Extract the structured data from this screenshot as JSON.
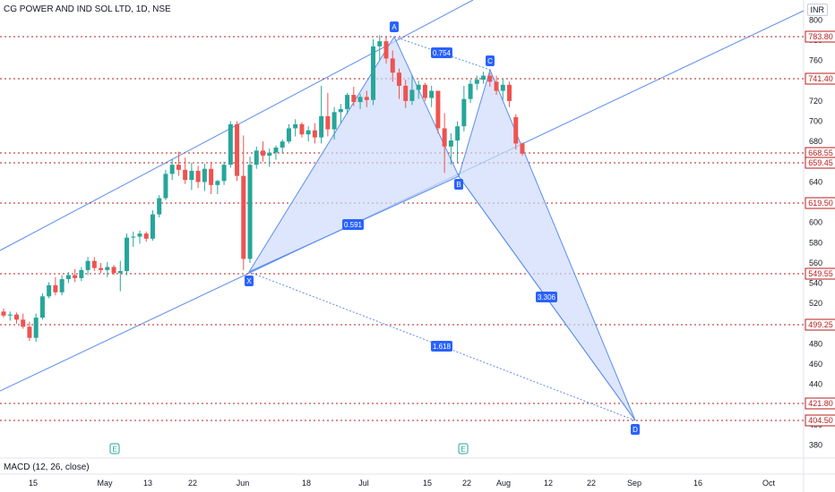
{
  "title": "CG POWER AND IND SOL LTD, 1D, NSE",
  "currency": "INR",
  "macd_label": "MACD (12, 26, close)",
  "colors": {
    "up": "#26a69a",
    "down": "#ef5350",
    "line": "#5b8def",
    "fill": "#cfdcfb",
    "level": "#b71c1c",
    "badge": "#2962ff"
  },
  "chart_data": {
    "type": "candlestick",
    "x_ticks": [
      "15",
      "May",
      "13",
      "22",
      "Jun",
      "18",
      "Jul",
      "15",
      "22",
      "Aug",
      "12",
      "22",
      "Sep",
      "16",
      "Oct"
    ],
    "y_ticks": [
      380,
      400,
      420,
      440,
      460,
      480,
      500,
      520,
      540,
      560,
      580,
      600,
      620,
      640,
      660,
      680,
      700,
      720,
      740,
      760,
      780,
      800
    ],
    "ylim": [
      370,
      810
    ],
    "price_labels": [
      "783.80",
      "741.40",
      "668.55",
      "659.45",
      "619.50",
      "549.55",
      "499.25",
      "421.80",
      "404.50"
    ],
    "pattern_points": [
      "X",
      "A",
      "B",
      "C",
      "D"
    ],
    "pattern_ratios": [
      "0.754",
      "0.591",
      "3.306",
      "1.618"
    ],
    "event_markers": [
      "E",
      "E"
    ],
    "candles": [
      [
        512,
        515,
        506,
        508
      ],
      [
        508,
        512,
        503,
        509
      ],
      [
        509,
        511,
        500,
        504
      ],
      [
        504,
        510,
        495,
        497
      ],
      [
        497,
        502,
        483,
        486
      ],
      [
        486,
        510,
        482,
        506
      ],
      [
        506,
        530,
        504,
        527
      ],
      [
        527,
        541,
        525,
        538
      ],
      [
        538,
        546,
        528,
        531
      ],
      [
        531,
        548,
        528,
        544
      ],
      [
        544,
        551,
        540,
        548
      ],
      [
        548,
        554,
        541,
        545
      ],
      [
        545,
        556,
        542,
        553
      ],
      [
        553,
        566,
        548,
        562
      ],
      [
        562,
        566,
        552,
        555
      ],
      [
        555,
        560,
        550,
        553
      ],
      [
        553,
        561,
        546,
        556
      ],
      [
        556,
        558,
        548,
        550
      ],
      [
        550,
        562,
        532,
        552
      ],
      [
        552,
        589,
        548,
        585
      ],
      [
        585,
        591,
        576,
        586
      ],
      [
        586,
        592,
        579,
        589
      ],
      [
        589,
        591,
        581,
        584
      ],
      [
        584,
        612,
        582,
        608
      ],
      [
        608,
        627,
        605,
        624
      ],
      [
        624,
        652,
        622,
        648
      ],
      [
        648,
        663,
        642,
        657
      ],
      [
        657,
        670,
        646,
        652
      ],
      [
        652,
        664,
        638,
        642
      ],
      [
        642,
        659,
        632,
        651
      ],
      [
        651,
        656,
        634,
        640
      ],
      [
        640,
        658,
        631,
        653
      ],
      [
        653,
        660,
        628,
        637
      ],
      [
        637,
        642,
        628,
        641
      ],
      [
        641,
        660,
        637,
        657
      ],
      [
        657,
        700,
        654,
        697
      ],
      [
        697,
        700,
        641,
        646
      ],
      [
        646,
        686,
        553,
        564
      ],
      [
        564,
        665,
        560,
        657
      ],
      [
        657,
        675,
        653,
        671
      ],
      [
        671,
        680,
        660,
        666
      ],
      [
        666,
        673,
        655,
        669
      ],
      [
        669,
        676,
        662,
        674
      ],
      [
        674,
        682,
        668,
        680
      ],
      [
        680,
        697,
        678,
        693
      ],
      [
        693,
        702,
        685,
        697
      ],
      [
        697,
        699,
        684,
        687
      ],
      [
        687,
        695,
        680,
        691
      ],
      [
        691,
        698,
        678,
        684
      ],
      [
        684,
        735,
        678,
        705
      ],
      [
        705,
        728,
        685,
        692
      ],
      [
        692,
        714,
        682,
        709
      ],
      [
        709,
        717,
        698,
        712
      ],
      [
        712,
        728,
        707,
        726
      ],
      [
        726,
        734,
        715,
        719
      ],
      [
        719,
        727,
        712,
        724
      ],
      [
        724,
        730,
        714,
        721
      ],
      [
        721,
        781,
        716,
        774
      ],
      [
        774,
        785,
        760,
        779
      ],
      [
        779,
        783,
        757,
        762
      ],
      [
        762,
        770,
        739,
        748
      ],
      [
        748,
        752,
        722,
        735
      ],
      [
        735,
        741,
        713,
        720
      ],
      [
        720,
        746,
        716,
        731
      ],
      [
        731,
        740,
        722,
        736
      ],
      [
        736,
        738,
        720,
        723
      ],
      [
        723,
        735,
        714,
        730
      ],
      [
        730,
        730,
        688,
        693
      ],
      [
        693,
        708,
        649,
        675
      ],
      [
        675,
        688,
        657,
        681
      ],
      [
        681,
        700,
        659,
        695
      ],
      [
        695,
        735,
        690,
        722
      ],
      [
        722,
        741,
        718,
        737
      ],
      [
        737,
        745,
        731,
        741
      ],
      [
        741,
        749,
        737,
        745
      ],
      [
        745,
        748,
        734,
        739
      ],
      [
        739,
        745,
        726,
        730
      ],
      [
        730,
        742,
        721,
        736
      ],
      [
        736,
        739,
        714,
        720
      ],
      [
        704,
        707,
        672,
        678
      ],
      [
        678,
        679,
        666,
        668
      ]
    ]
  }
}
